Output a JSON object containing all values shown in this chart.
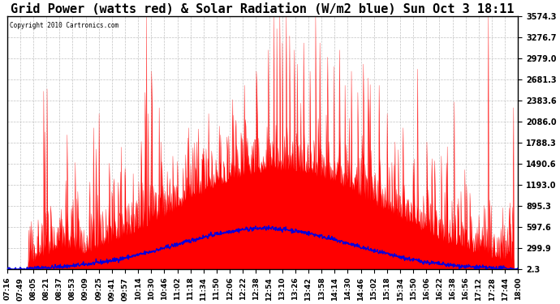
{
  "title": "Grid Power (watts red) & Solar Radiation (W/m2 blue) Sun Oct 3 18:11",
  "copyright": "Copyright 2010 Cartronics.com",
  "y_ticks": [
    2.3,
    299.9,
    597.6,
    895.3,
    1193.0,
    1490.6,
    1788.3,
    2086.0,
    2383.6,
    2681.3,
    2979.0,
    3276.7,
    3574.3
  ],
  "y_min": 2.3,
  "y_max": 3574.3,
  "background_color": "#ffffff",
  "plot_bg_color": "#ffffff",
  "grid_color": "#bbbbbb",
  "title_fontsize": 11,
  "red_color": "#ff0000",
  "blue_color": "#0000dd",
  "x_label_fontsize": 6.5,
  "time_labels": [
    "07:16",
    "07:49",
    "08:05",
    "08:21",
    "08:37",
    "08:53",
    "09:09",
    "09:25",
    "09:41",
    "09:57",
    "10:14",
    "10:30",
    "10:46",
    "11:02",
    "11:18",
    "11:34",
    "11:50",
    "12:06",
    "12:22",
    "12:38",
    "12:54",
    "13:10",
    "13:26",
    "13:42",
    "13:58",
    "14:14",
    "14:30",
    "14:46",
    "15:02",
    "15:18",
    "15:34",
    "15:50",
    "16:06",
    "16:22",
    "16:38",
    "16:56",
    "17:12",
    "17:28",
    "17:44",
    "18:00"
  ]
}
